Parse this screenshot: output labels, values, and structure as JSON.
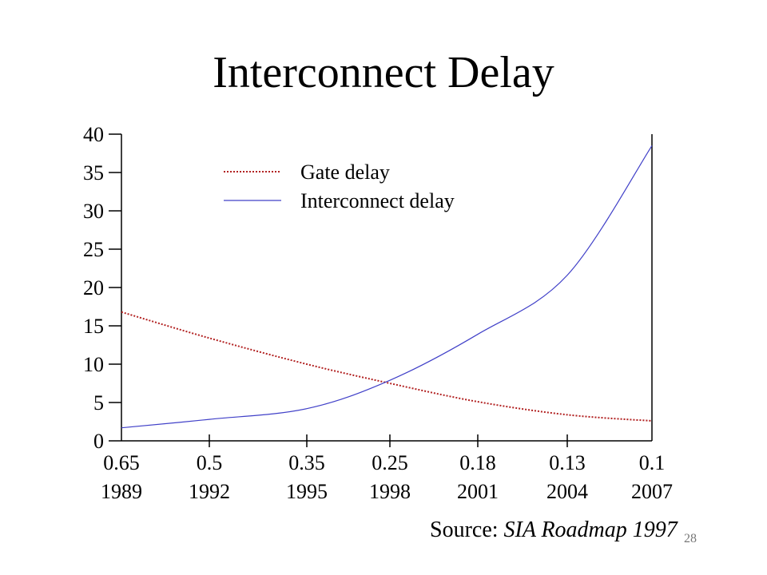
{
  "slide": {
    "title": "Interconnect Delay",
    "source_prefix": "Source:",
    "source_name": "SIA Roadmap 1997",
    "page_number": "28"
  },
  "chart_data": {
    "type": "line",
    "title": "Interconnect Delay",
    "xlabel": "",
    "ylabel": "",
    "categories": [
      {
        "feature_size": "0.65",
        "year": "1989"
      },
      {
        "feature_size": "0.5",
        "year": "1992"
      },
      {
        "feature_size": "0.35",
        "year": "1995"
      },
      {
        "feature_size": "0.25",
        "year": "1998"
      },
      {
        "feature_size": "0.18",
        "year": "2001"
      },
      {
        "feature_size": "0.13",
        "year": "2004"
      },
      {
        "feature_size": "0.1",
        "year": "2007"
      }
    ],
    "ylim": [
      0,
      40
    ],
    "yticks": [
      0,
      5,
      10,
      15,
      20,
      25,
      30,
      35,
      40
    ],
    "series": [
      {
        "name": "Gate delay",
        "color": "#b22222",
        "style": "dotted",
        "values": [
          16.8,
          13.4,
          10.0,
          7.5,
          5.1,
          3.4,
          2.6
        ]
      },
      {
        "name": "Interconnect delay",
        "color": "#4040c8",
        "style": "solid",
        "values": [
          1.7,
          2.8,
          4.2,
          7.9,
          13.9,
          21.6,
          38.5
        ]
      }
    ],
    "legend_position": "top-left",
    "grid": false
  }
}
